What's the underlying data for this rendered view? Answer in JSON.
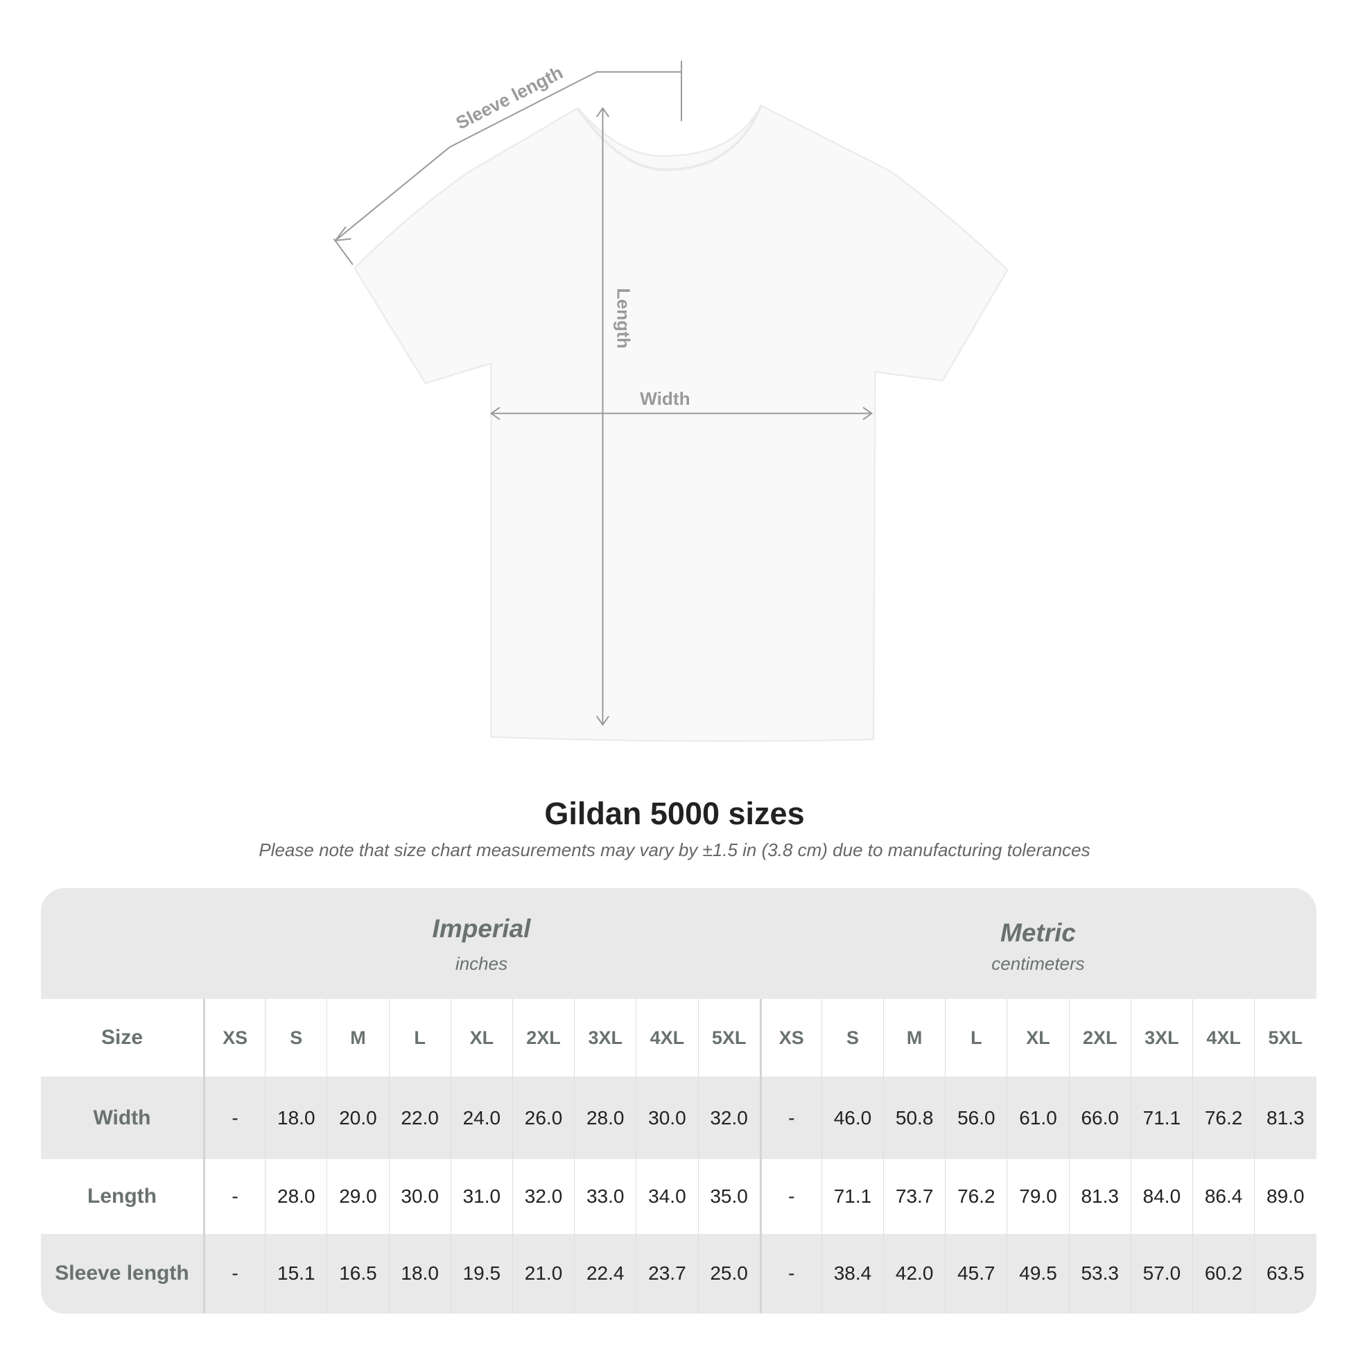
{
  "diagram": {
    "labels": {
      "sleeve": "Sleeve length",
      "length": "Length",
      "width": "Width"
    }
  },
  "title": "Gildan 5000 sizes",
  "note": "Please note that size chart measurements may vary by ±1.5 in (3.8 cm) due to manufacturing tolerances",
  "table": {
    "imperial": {
      "title": "Imperial",
      "unit": "inches"
    },
    "metric": {
      "title": "Metric",
      "unit": "centimeters"
    },
    "size_label": "Size",
    "sizes": [
      "XS",
      "S",
      "M",
      "L",
      "XL",
      "2XL",
      "3XL",
      "4XL",
      "5XL"
    ],
    "rows": [
      {
        "label": "Width",
        "imperial": [
          "-",
          "18.0",
          "20.0",
          "22.0",
          "24.0",
          "26.0",
          "28.0",
          "30.0",
          "32.0"
        ],
        "metric": [
          "-",
          "46.0",
          "50.8",
          "56.0",
          "61.0",
          "66.0",
          "71.1",
          "76.2",
          "81.3"
        ]
      },
      {
        "label": "Length",
        "imperial": [
          "-",
          "28.0",
          "29.0",
          "30.0",
          "31.0",
          "32.0",
          "33.0",
          "34.0",
          "35.0"
        ],
        "metric": [
          "-",
          "71.1",
          "73.7",
          "76.2",
          "79.0",
          "81.3",
          "84.0",
          "86.4",
          "89.0"
        ]
      },
      {
        "label": "Sleeve length",
        "imperial": [
          "-",
          "15.1",
          "16.5",
          "18.0",
          "19.5",
          "21.0",
          "22.4",
          "23.7",
          "25.0"
        ],
        "metric": [
          "-",
          "38.4",
          "42.0",
          "45.7",
          "49.5",
          "53.3",
          "57.0",
          "60.2",
          "63.5"
        ]
      }
    ]
  },
  "colors": {
    "header_text": "#6a7171",
    "table_bg": "#e9e9e9",
    "value_text": "#222222"
  }
}
